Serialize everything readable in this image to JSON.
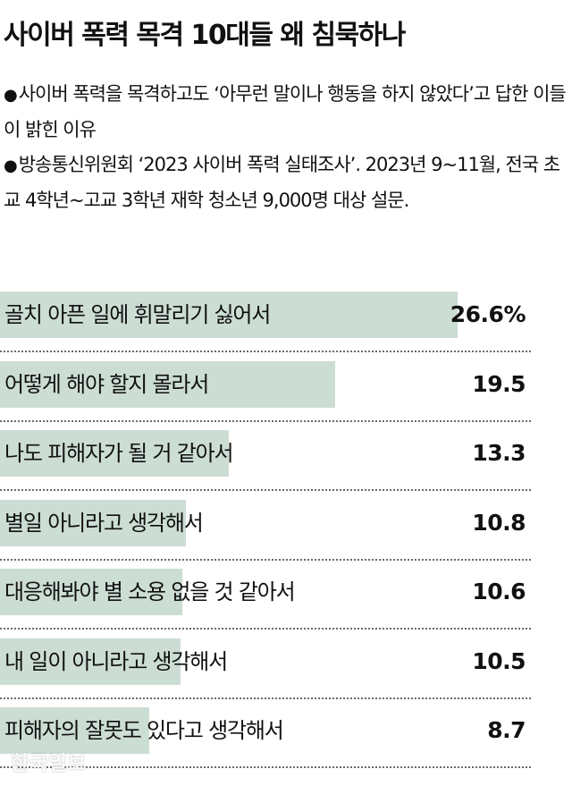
{
  "title": "사이버 폭력 목격 10대들 왜 침묵하나",
  "notes": [
    {
      "bullet": "●",
      "text": "사이버 폭력을 목격하고도 ‘아무런 말이나 행동을 하지 않았다’고 답한 이들이 밝힌 이유"
    },
    {
      "bullet": "●",
      "text": "방송통신위원회 ‘2023 사이버 폭력 실태조사’. 2023년 9~11월, 전국 초교 4학년~고교 3학년 재학 청소년 9,000명 대상 설문."
    }
  ],
  "chart_data": {
    "type": "bar",
    "orientation": "horizontal",
    "unit": "%",
    "categories": [
      "골치 아픈 일에 휘말리기 싫어서",
      "어떻게 해야 할지 몰라서",
      "나도 피해자가 될 거 같아서",
      "별일 아니라고 생각해서",
      "대응해봐야 별 소용 없을 것 같아서",
      "내 일이 아니라고 생각해서",
      "피해자의 잘못도 있다고 생각해서"
    ],
    "values": [
      26.6,
      19.5,
      13.3,
      10.8,
      10.6,
      10.5,
      8.7
    ],
    "value_labels": [
      "26.6%",
      "19.5",
      "13.3",
      "10.8",
      "10.6",
      "10.5",
      "8.7"
    ],
    "bar_color": "#ccddd4",
    "xlim": [
      0,
      26.6
    ]
  },
  "watermark": "한국일보"
}
